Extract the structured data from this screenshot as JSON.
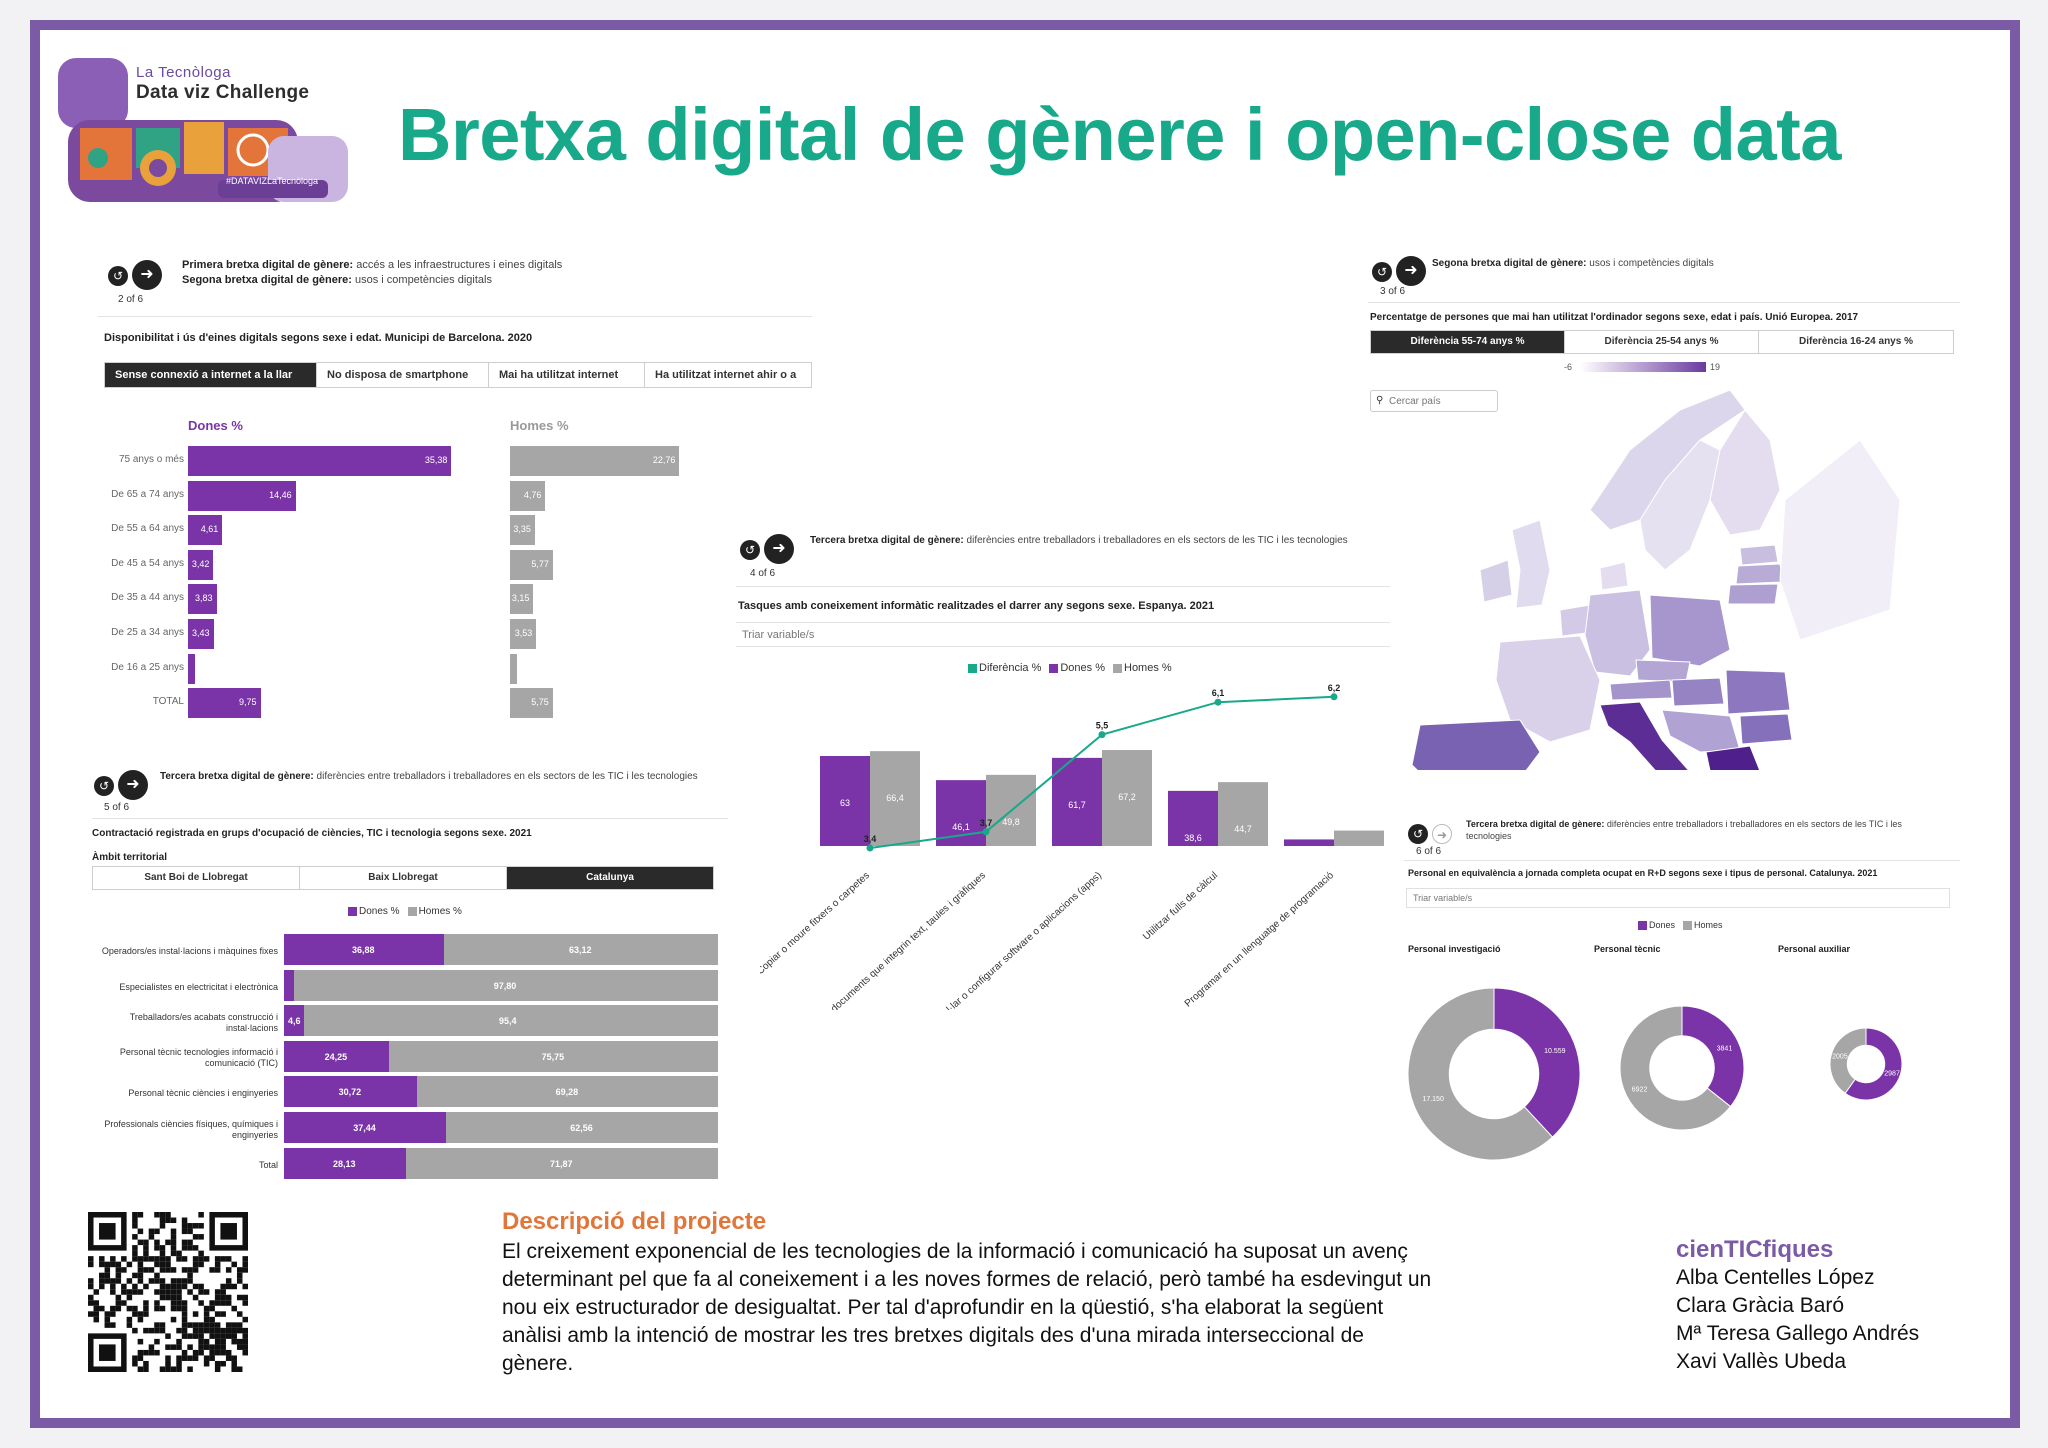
{
  "logo": {
    "line1": "La Tecnòloga",
    "line2": "Data viz Challenge",
    "hashtag": "#DATAVIZLaTecnòloga"
  },
  "title": "Bretxa digital de gènere i open-close data",
  "colors": {
    "purple": "#7b34a8",
    "grey": "#a6a6a6",
    "green": "#17a98a",
    "frame": "#7b5ba6"
  },
  "panel1": {
    "pager": "2 of 6",
    "gap1_bold": "Primera bretxa digital de gènere:",
    "gap1_text": " accés a les infraestructures i eines digitals",
    "gap2_bold": "Segona bretxa digital de gènere:",
    "gap2_text": " usos i competències digitals",
    "chart_title": "Disponibilitat i ús d'eines digitals segons sexe i edat. Municipi de Barcelona. 2020",
    "tabs": [
      "Sense connexió a internet a la llar",
      "No disposa de smartphone",
      "Mai ha utilitzat internet",
      "Ha utilitzat internet ahir o a"
    ],
    "women_header": "Dones %",
    "men_header": "Homes %"
  },
  "panel2": {
    "pager": "3 of 6",
    "gap_bold": "Segona bretxa digital de gènere:",
    "gap_text": " usos i competències digitals",
    "chart_title": "Percentatge de persones que mai han utilitzat l'ordinador segons sexe, edat i país. Unió Europea. 2017",
    "tabs": [
      "Diferència 55-74 anys %",
      "Diferència 25-54 anys %",
      "Diferència 16-24 anys %"
    ],
    "scale_min": "-6",
    "scale_max": "19",
    "search_placeholder": "Cercar país"
  },
  "panel3": {
    "pager": "4 of 6",
    "gap_bold": "Tercera bretxa digital de gènere:",
    "gap_text": " diferències entre treballadors i treballadores en els sectors de les TIC i les tecnologies",
    "chart_title": "Tasques amb coneixement informàtic realitzades el darrer any segons sexe. Espanya. 2021",
    "select_label": "Triar variable/s",
    "legend": [
      "Diferència %",
      "Dones %",
      "Homes %"
    ]
  },
  "panel4": {
    "pager": "5 of 6",
    "gap_bold": "Tercera bretxa digital de gènere:",
    "gap_text": " diferències entre treballadors i treballadores en els sectors de les TIC i les tecnologies",
    "chart_title": "Contractació registrada en grups d'ocupació de ciències, TIC i tecnologia segons sexe. 2021",
    "scope_label": "Àmbit territorial",
    "tabs": [
      "Sant Boi de Llobregat",
      "Baix Llobregat",
      "Catalunya"
    ],
    "legend": [
      "Dones %",
      "Homes %"
    ]
  },
  "panel5": {
    "pager": "6 of 6",
    "gap_bold": "Tercera bretxa digital de gènere:",
    "gap_text": " diferències entre treballadors i treballadores en els sectors de les TIC i les tecnologies",
    "chart_title": "Personal en equivalència a jornada completa ocupat en R+D segons sexe i tipus de personal. Catalunya. 2021",
    "select_label": "Triar variable/s",
    "legend": [
      "Dones",
      "Homes"
    ]
  },
  "chart_data": [
    {
      "type": "bar",
      "orientation": "horizontal",
      "categories": [
        "75 anys o més",
        "De 65 a 74 anys",
        "De 55 a 64 anys",
        "De 45 a 54 anys",
        "De 35 a 44 anys",
        "De 25 a 34 anys",
        "De 16 a 25 anys",
        "TOTAL"
      ],
      "series": [
        {
          "name": "Dones %",
          "values": [
            35.38,
            14.46,
            4.61,
            3.42,
            3.83,
            3.43,
            0.9,
            9.75
          ],
          "labels": [
            "35,38",
            "14,46",
            "4,61",
            "3,42",
            "3,83",
            "3,43",
            "",
            "9,75"
          ]
        },
        {
          "name": "Homes %",
          "values": [
            22.76,
            4.76,
            3.35,
            5.77,
            3.15,
            3.53,
            0.9,
            5.75
          ],
          "labels": [
            "22,76",
            "4,76",
            "3,35",
            "5,77",
            "3,15",
            "3,53",
            "",
            "5,75"
          ]
        }
      ],
      "xlim": [
        0,
        36
      ]
    },
    {
      "type": "bar",
      "categories": [
        "Copiar o moure fitxers o carpetes",
        "Crear presentacions o documents que integrin text, taules i gràfiques",
        "Instal·lar o configurar software o aplicacions (apps)",
        "Utilitzar fulls de càlcul",
        "Programar en un llenguatge de programació"
      ],
      "series": [
        {
          "name": "Dones %",
          "values": [
            63,
            46.1,
            61.7,
            38.6,
            4.6
          ],
          "labels": [
            "63",
            "46,1",
            "61,7",
            "38,6",
            "4,6"
          ]
        },
        {
          "name": "Homes %",
          "values": [
            66.4,
            49.8,
            67.2,
            44.7,
            10.8
          ],
          "labels": [
            "66,4",
            "49,8",
            "67,2",
            "44,7",
            "10,8"
          ]
        },
        {
          "name": "Diferència %",
          "type": "line",
          "values": [
            3.4,
            3.7,
            5.5,
            6.1,
            6.2
          ],
          "labels": [
            "3,4",
            "3,7",
            "5,5",
            "6,1",
            "6,2"
          ]
        }
      ],
      "ylim": [
        0,
        70
      ]
    },
    {
      "type": "bar",
      "stacked": "percent",
      "orientation": "horizontal",
      "categories": [
        "Operadors/es instal·lacions i màquines fixes",
        "Especialistes en electricitat i electrònica",
        "Treballadors/es acabats construcció i instal·lacions",
        "Personal tècnic tecnologies informació i comunicació (TIC)",
        "Personal tècnic ciències i enginyeries",
        "Professionals ciències físiques, químiques i enginyeries",
        "Total"
      ],
      "series": [
        {
          "name": "Dones %",
          "values": [
            36.88,
            2.2,
            4.6,
            24.25,
            30.72,
            37.44,
            28.13
          ],
          "labels": [
            "36,88",
            "",
            "4,6",
            "24,25",
            "30,72",
            "37,44",
            "28,13"
          ]
        },
        {
          "name": "Homes %",
          "values": [
            63.12,
            97.8,
            95.4,
            75.75,
            69.28,
            62.56,
            71.87
          ],
          "labels": [
            "63,12",
            "97,80",
            "95,4",
            "75,75",
            "69,28",
            "62,56",
            "71,87"
          ]
        }
      ]
    },
    {
      "type": "pie",
      "variant": "donut",
      "groups": [
        {
          "name": "Personal investigació",
          "values": [
            10559,
            17150
          ],
          "labels": [
            "10.559",
            "17.150"
          ]
        },
        {
          "name": "Personal tècnic",
          "values": [
            3841,
            6922
          ],
          "labels": [
            "3841",
            "6922"
          ]
        },
        {
          "name": "Personal auxiliar",
          "values": [
            2987,
            2005
          ],
          "labels": [
            "2987",
            "2005"
          ]
        }
      ],
      "series_names": [
        "Dones",
        "Homes"
      ]
    },
    {
      "type": "heatmap",
      "variant": "choropleth",
      "regions": [
        {
          "name": "Finlàndia",
          "value": 2
        },
        {
          "name": "Suècia",
          "value": 1
        },
        {
          "name": "Estònia",
          "value": 6
        },
        {
          "name": "Letònia",
          "value": 8
        },
        {
          "name": "Lituània",
          "value": 9
        },
        {
          "name": "Regne Unit",
          "value": 2
        },
        {
          "name": "Irlanda",
          "value": 3
        },
        {
          "name": "Alemanya",
          "value": 4
        },
        {
          "name": "Polònia",
          "value": 9
        },
        {
          "name": "França",
          "value": 3
        },
        {
          "name": "Espanya",
          "value": 12
        },
        {
          "name": "Itàlia",
          "value": 17
        },
        {
          "name": "Hongria",
          "value": 10
        },
        {
          "name": "Romania",
          "value": 12
        },
        {
          "name": "Bulgària",
          "value": 14
        },
        {
          "name": "Grècia",
          "value": 19
        }
      ],
      "scale": [
        -6,
        19
      ]
    }
  ]
}
